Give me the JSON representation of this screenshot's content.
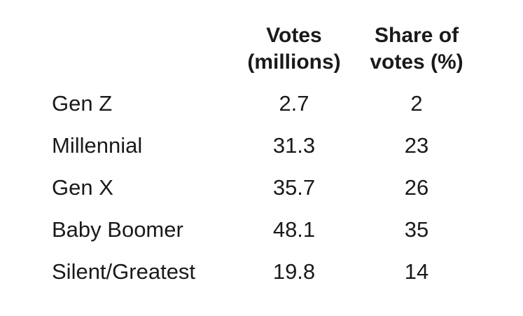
{
  "chart_data": {
    "type": "table",
    "columns": [
      "Votes (millions)",
      "Share of votes (%)"
    ],
    "header": {
      "votes": [
        "Votes",
        "(millions)"
      ],
      "share": [
        "Share of",
        "votes (%)"
      ]
    },
    "rows": [
      {
        "label": "Gen Z",
        "votes": "2.7",
        "share": "2"
      },
      {
        "label": "Millennial",
        "votes": "31.3",
        "share": "23"
      },
      {
        "label": "Gen X",
        "votes": "35.7",
        "share": "26"
      },
      {
        "label": "Baby Boomer",
        "votes": "48.1",
        "share": "35"
      },
      {
        "label": "Silent/Greatest",
        "votes": "19.8",
        "share": "14"
      }
    ]
  },
  "colors": {
    "text": "#1a1a1a",
    "background": "#ffffff"
  }
}
